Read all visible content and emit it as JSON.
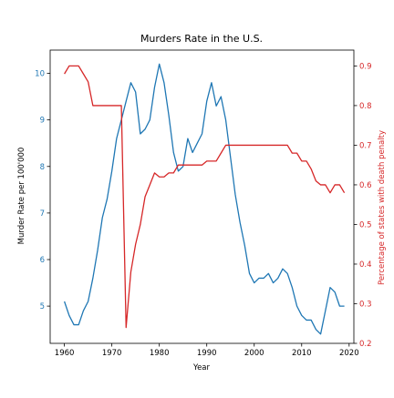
{
  "chart_data": {
    "type": "line",
    "title": "Murders Rate in the U.S.",
    "xlabel": "Year",
    "ylabel_left": "Murder Rate per 100'000",
    "ylabel_right": "Percentage of states with death penalty",
    "xlim": [
      1957,
      2021
    ],
    "ylim_left": [
      4.2,
      10.5
    ],
    "ylim_right": [
      0.2,
      0.94
    ],
    "x_ticks": [
      "1960",
      "1970",
      "1980",
      "1990",
      "2000",
      "2010",
      "2020"
    ],
    "y_left_ticks": [
      "5",
      "6",
      "7",
      "8",
      "9",
      "10"
    ],
    "y_right_ticks": [
      "0.2",
      "0.3",
      "0.4",
      "0.5",
      "0.6",
      "0.7",
      "0.8",
      "0.9"
    ],
    "grid": false,
    "colors": {
      "left_axis": "#1f77b4",
      "right_axis": "#d62728",
      "frame": "#000000"
    },
    "series": [
      {
        "axis": "left",
        "color": "#1f77b4",
        "x": [
          1960,
          1961,
          1962,
          1963,
          1964,
          1965,
          1966,
          1967,
          1968,
          1969,
          1970,
          1971,
          1972,
          1973,
          1974,
          1975,
          1976,
          1977,
          1978,
          1979,
          1980,
          1981,
          1982,
          1983,
          1984,
          1985,
          1986,
          1987,
          1988,
          1989,
          1990,
          1991,
          1992,
          1993,
          1994,
          1995,
          1996,
          1997,
          1998,
          1999,
          2000,
          2001,
          2002,
          2003,
          2004,
          2005,
          2006,
          2007,
          2008,
          2009,
          2010,
          2011,
          2012,
          2013,
          2014,
          2015,
          2016,
          2017,
          2018,
          2019
        ],
        "y": [
          5.1,
          4.8,
          4.6,
          4.6,
          4.9,
          5.1,
          5.6,
          6.2,
          6.9,
          7.3,
          7.9,
          8.6,
          9.0,
          9.4,
          9.8,
          9.6,
          8.7,
          8.8,
          9.0,
          9.7,
          10.2,
          9.8,
          9.1,
          8.3,
          7.9,
          8.0,
          8.6,
          8.3,
          8.5,
          8.7,
          9.4,
          9.8,
          9.3,
          9.5,
          9.0,
          8.2,
          7.4,
          6.8,
          6.3,
          5.7,
          5.5,
          5.6,
          5.6,
          5.7,
          5.5,
          5.6,
          5.8,
          5.7,
          5.4,
          5.0,
          4.8,
          4.7,
          4.7,
          4.5,
          4.4,
          4.9,
          5.4,
          5.3,
          5.0,
          5.0
        ]
      },
      {
        "axis": "right",
        "color": "#d62728",
        "x": [
          1960,
          1961,
          1962,
          1963,
          1964,
          1965,
          1966,
          1967,
          1968,
          1969,
          1970,
          1971,
          1972,
          1973,
          1974,
          1975,
          1976,
          1977,
          1978,
          1979,
          1980,
          1981,
          1982,
          1983,
          1984,
          1985,
          1986,
          1987,
          1988,
          1989,
          1990,
          1991,
          1992,
          1993,
          1994,
          1995,
          1996,
          1997,
          1998,
          1999,
          2000,
          2001,
          2002,
          2003,
          2004,
          2005,
          2006,
          2007,
          2008,
          2009,
          2010,
          2011,
          2012,
          2013,
          2014,
          2015,
          2016,
          2017,
          2018,
          2019
        ],
        "y": [
          0.88,
          0.9,
          0.9,
          0.9,
          0.88,
          0.86,
          0.8,
          0.8,
          0.8,
          0.8,
          0.8,
          0.8,
          0.8,
          0.24,
          0.38,
          0.45,
          0.5,
          0.57,
          0.6,
          0.63,
          0.62,
          0.62,
          0.63,
          0.63,
          0.65,
          0.65,
          0.65,
          0.65,
          0.65,
          0.65,
          0.66,
          0.66,
          0.66,
          0.68,
          0.7,
          0.7,
          0.7,
          0.7,
          0.7,
          0.7,
          0.7,
          0.7,
          0.7,
          0.7,
          0.7,
          0.7,
          0.7,
          0.7,
          0.68,
          0.68,
          0.66,
          0.66,
          0.64,
          0.61,
          0.6,
          0.6,
          0.58,
          0.6,
          0.6,
          0.58
        ]
      }
    ]
  }
}
